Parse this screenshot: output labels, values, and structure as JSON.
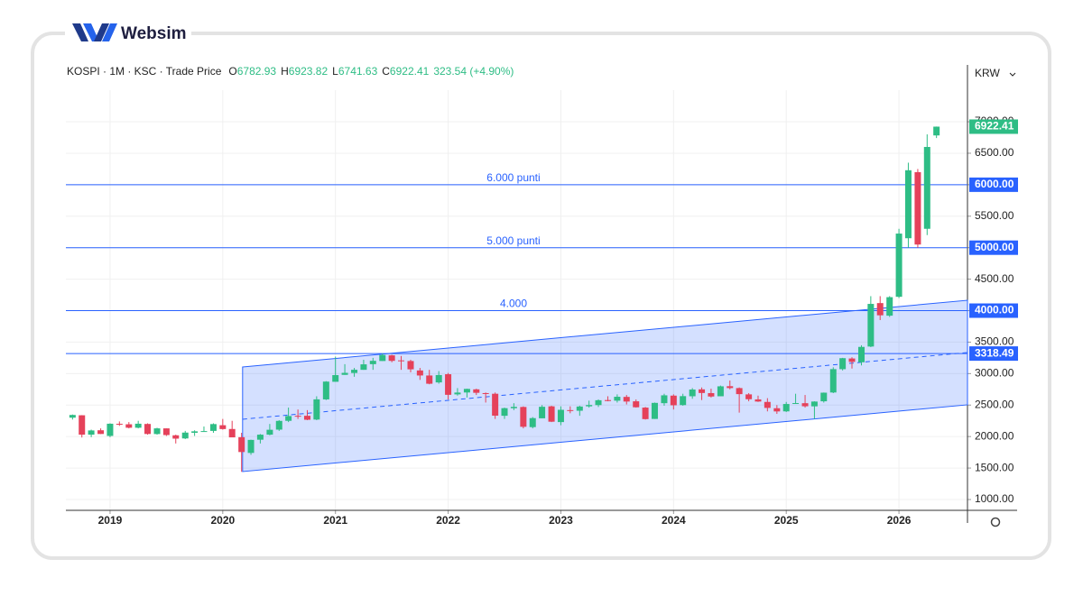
{
  "brand": "Websim",
  "chart_data": {
    "type": "candlestick",
    "symbol": "KOSPI · 1M · KSC · Trade Price",
    "ohlc_letters": [
      "O",
      "H",
      "L",
      "C"
    ],
    "change": "323.54 (+4.90%)",
    "currency": "KRW",
    "colors": {
      "up": "#2ebd85",
      "down": "#e5415a",
      "level": "#2962ff"
    },
    "x": [
      2018.667,
      2018.75,
      2018.833,
      2018.917,
      2019,
      2019.083,
      2019.167,
      2019.25,
      2019.333,
      2019.417,
      2019.5,
      2019.583,
      2019.667,
      2019.75,
      2019.833,
      2019.917,
      2020,
      2020.083,
      2020.167,
      2020.25,
      2020.333,
      2020.417,
      2020.5,
      2020.583,
      2020.667,
      2020.75,
      2020.833,
      2020.917,
      2021,
      2021.083,
      2021.167,
      2021.25,
      2021.333,
      2021.417,
      2021.5,
      2021.583,
      2021.667,
      2021.75,
      2021.833,
      2021.917,
      2022,
      2022.083,
      2022.167,
      2022.25,
      2022.333,
      2022.417,
      2022.5,
      2022.583,
      2022.667,
      2022.75,
      2022.833,
      2022.917,
      2023,
      2023.083,
      2023.167,
      2023.25,
      2023.333,
      2023.417,
      2023.5,
      2023.583,
      2023.667,
      2023.75,
      2023.833,
      2023.917,
      2024,
      2024.083,
      2024.167,
      2024.25,
      2024.333,
      2024.417,
      2024.5,
      2024.583,
      2024.667,
      2024.75,
      2024.833,
      2024.917,
      2025,
      2025.083,
      2025.167,
      2025.25,
      2025.333,
      2025.417,
      2025.5,
      2025.583,
      2025.667,
      2025.75,
      2025.833,
      2025.917,
      2026,
      2026.083,
      2026.167,
      2026.25,
      2026.333
    ],
    "open": [
      2300,
      2338,
      2030,
      2100,
      2010,
      2203,
      2195,
      2140,
      2200,
      2040,
      2130,
      2020,
      1970,
      2060,
      2080,
      2090,
      2180,
      2120,
      1990,
      1740,
      1950,
      2030,
      2110,
      2250,
      2330,
      2330,
      2270,
      2590,
      2870,
      2980,
      3010,
      3060,
      3150,
      3200,
      3290,
      3210,
      3200,
      3050,
      2970,
      2860,
      2990,
      2670,
      2700,
      2750,
      2690,
      2680,
      2330,
      2450,
      2470,
      2150,
      2290,
      2480,
      2230,
      2420,
      2410,
      2480,
      2500,
      2580,
      2570,
      2630,
      2560,
      2460,
      2280,
      2530,
      2650,
      2500,
      2640,
      2750,
      2690,
      2640,
      2800,
      2770,
      2670,
      2590,
      2550,
      2450,
      2400,
      2520,
      2530,
      2480,
      2560,
      2700,
      3070,
      3240,
      3180,
      3430,
      4120,
      3920,
      4220,
      5150,
      6200,
      5300,
      6782.93
    ],
    "high": [
      2350,
      2340,
      2110,
      2130,
      2210,
      2240,
      2230,
      2250,
      2210,
      2140,
      2130,
      2030,
      2090,
      2100,
      2160,
      2210,
      2280,
      2250,
      2060,
      1950,
      2040,
      2200,
      2260,
      2460,
      2430,
      2420,
      2640,
      2880,
      3270,
      3150,
      3090,
      3220,
      3250,
      3320,
      3300,
      3280,
      3220,
      3090,
      3060,
      3040,
      3010,
      2770,
      2760,
      2760,
      2700,
      2700,
      2460,
      2530,
      2480,
      2310,
      2500,
      2490,
      2480,
      2480,
      2490,
      2570,
      2590,
      2640,
      2670,
      2660,
      2590,
      2470,
      2540,
      2680,
      2670,
      2680,
      2770,
      2780,
      2760,
      2810,
      2890,
      2780,
      2690,
      2650,
      2610,
      2500,
      2550,
      2680,
      2660,
      2560,
      2700,
      3100,
      3250,
      3260,
      3450,
      4230,
      4230,
      4230,
      5300,
      6350,
      6250,
      6800,
      6923.82
    ],
    "low": [
      2270,
      1985,
      1990,
      2040,
      1990,
      2170,
      2130,
      2130,
      2030,
      2030,
      2010,
      1890,
      1960,
      2010,
      2080,
      2060,
      2110,
      1990,
      1440,
      1710,
      1890,
      2020,
      2090,
      2230,
      2280,
      2260,
      2260,
      2580,
      2870,
      2980,
      2950,
      3060,
      3060,
      3200,
      3180,
      3060,
      3020,
      2900,
      2830,
      2840,
      2590,
      2650,
      2620,
      2660,
      2540,
      2280,
      2280,
      2420,
      2130,
      2130,
      2290,
      2230,
      2180,
      2370,
      2330,
      2460,
      2470,
      2560,
      2540,
      2510,
      2460,
      2270,
      2280,
      2490,
      2430,
      2490,
      2600,
      2580,
      2620,
      2640,
      2750,
      2380,
      2560,
      2550,
      2400,
      2360,
      2390,
      2520,
      2460,
      2280,
      2540,
      2690,
      3050,
      3080,
      3130,
      3420,
      3850,
      3900,
      4200,
      5000,
      5000,
      5200,
      6741.63
    ],
    "close": [
      2343,
      2030,
      2097,
      2041,
      2204,
      2195,
      2140,
      2204,
      2041,
      2130,
      2024,
      1967,
      2063,
      2083,
      2087,
      2198,
      2119,
      1987,
      1754,
      1947,
      2030,
      2108,
      2249,
      2326,
      2327,
      2267,
      2591,
      2873,
      2976,
      3012,
      3061,
      3147,
      3203,
      3296,
      3202,
      3199,
      3068,
      2970,
      2839,
      2977,
      2663,
      2699,
      2757,
      2695,
      2685,
      2332,
      2451,
      2472,
      2155,
      2293,
      2473,
      2236,
      2425,
      2412,
      2477,
      2501,
      2577,
      2564,
      2632,
      2556,
      2465,
      2277,
      2535,
      2655,
      2497,
      2642,
      2747,
      2692,
      2636,
      2798,
      2770,
      2674,
      2593,
      2556,
      2455,
      2399,
      2517,
      2532,
      2481,
      2556,
      2697,
      3071,
      3245,
      3186,
      3424,
      4107,
      3926,
      4214,
      5224,
      6230,
      5050,
      6600,
      6922.41
    ],
    "xlim": [
      2018.608,
      2026.608
    ],
    "xticks": [
      2019,
      2020,
      2021,
      2022,
      2023,
      2024,
      2025,
      2026
    ],
    "ylim": [
      828,
      7903
    ],
    "yticks": [
      {
        "value": 1000,
        "label": "1000.00"
      },
      {
        "value": 1500,
        "label": "1500.00"
      },
      {
        "value": 2000,
        "label": "2000.00"
      },
      {
        "value": 2500,
        "label": "2500.00"
      },
      {
        "value": 3000,
        "label": "3000.00"
      },
      {
        "value": 3500,
        "label": "3500.00"
      },
      {
        "value": 4000,
        "label": "4000.00"
      },
      {
        "value": 4500,
        "label": "4500.00"
      },
      {
        "value": 5000,
        "label": "5000.00"
      },
      {
        "value": 5500,
        "label": "5500.00"
      },
      {
        "value": 6000,
        "label": "6000.00"
      },
      {
        "value": 6500,
        "label": "6500.00"
      },
      {
        "value": 7000,
        "label": "7000.00"
      }
    ],
    "grid": true,
    "levels": [
      {
        "value": 6000,
        "label": "6000.00",
        "text": "6.000 punti"
      },
      {
        "value": 5000,
        "label": "5000.00",
        "text": "5.000 punti"
      },
      {
        "value": 4000,
        "label": "4000.00",
        "text": "4.000"
      },
      {
        "value": 3318.49
      }
    ],
    "channel": {
      "x": [
        2020.176,
        2026.608
      ],
      "upper": [
        3105,
        4165
      ],
      "middle": [
        2275,
        3335
      ],
      "lower": [
        1444,
        2504
      ]
    }
  }
}
